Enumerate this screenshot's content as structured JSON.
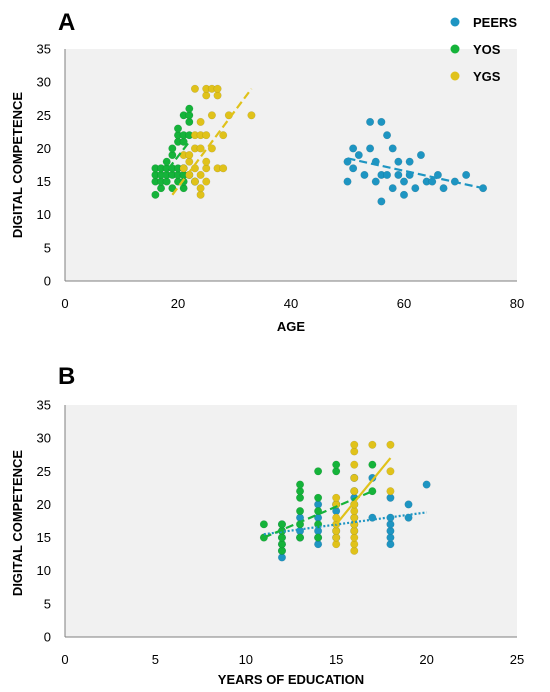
{
  "colors": {
    "PEERS": "#1e95c2",
    "YOS": "#15b33a",
    "YGS": "#e0c21a",
    "plot_bg": "#f1f1f1",
    "axis": "#7f7f7f"
  },
  "legend": [
    {
      "name": "PEERS",
      "color": "#1e95c2"
    },
    {
      "name": "YOS",
      "color": "#15b33a"
    },
    {
      "name": "YGS",
      "color": "#e0c21a"
    }
  ],
  "chart_data": [
    {
      "panel": "A",
      "type": "scatter",
      "xlabel": "AGE",
      "ylabel": "DIGITAL COMPETENCE",
      "xlim": [
        0,
        80
      ],
      "ylim": [
        0,
        35
      ],
      "xticks": [
        0,
        20,
        40,
        60,
        80
      ],
      "yticks": [
        0,
        5,
        10,
        15,
        20,
        25,
        30,
        35
      ],
      "grid": false,
      "legend_position": "top-right",
      "series": [
        {
          "name": "PEERS",
          "color": "#1e95c2",
          "trend": {
            "x": [
              50,
              74
            ],
            "y": [
              18.5,
              14
            ],
            "style": "dashed"
          },
          "points": [
            [
              50,
              15
            ],
            [
              50,
              18
            ],
            [
              51,
              20
            ],
            [
              51,
              17
            ],
            [
              52,
              19
            ],
            [
              53,
              16
            ],
            [
              54,
              24
            ],
            [
              54,
              20
            ],
            [
              55,
              18
            ],
            [
              55,
              15
            ],
            [
              56,
              12
            ],
            [
              56,
              16
            ],
            [
              56,
              24
            ],
            [
              57,
              22
            ],
            [
              57,
              16
            ],
            [
              58,
              14
            ],
            [
              58,
              20
            ],
            [
              59,
              18
            ],
            [
              59,
              16
            ],
            [
              60,
              15
            ],
            [
              60,
              13
            ],
            [
              61,
              16
            ],
            [
              61,
              18
            ],
            [
              62,
              14
            ],
            [
              63,
              19
            ],
            [
              64,
              15
            ],
            [
              65,
              15
            ],
            [
              66,
              16
            ],
            [
              67,
              14
            ],
            [
              69,
              15
            ],
            [
              71,
              16
            ],
            [
              74,
              14
            ]
          ]
        },
        {
          "name": "YOS",
          "color": "#15b33a",
          "trend": {
            "x": [
              17,
              22
            ],
            "y": [
              15.5,
              21
            ],
            "style": "dashed"
          },
          "points": [
            [
              16,
              13
            ],
            [
              16,
              15
            ],
            [
              16,
              16
            ],
            [
              16,
              17
            ],
            [
              17,
              14
            ],
            [
              17,
              15
            ],
            [
              17,
              16
            ],
            [
              17,
              17
            ],
            [
              18,
              15
            ],
            [
              18,
              16
            ],
            [
              18,
              17
            ],
            [
              18,
              18
            ],
            [
              19,
              14
            ],
            [
              19,
              16
            ],
            [
              19,
              17
            ],
            [
              19,
              19
            ],
            [
              19,
              20
            ],
            [
              20,
              15
            ],
            [
              20,
              16
            ],
            [
              20,
              17
            ],
            [
              20,
              21
            ],
            [
              20,
              22
            ],
            [
              20,
              23
            ],
            [
              21,
              14
            ],
            [
              21,
              15
            ],
            [
              21,
              16
            ],
            [
              21,
              17
            ],
            [
              21,
              21
            ],
            [
              21,
              22
            ],
            [
              21,
              25
            ],
            [
              22,
              16
            ],
            [
              22,
              22
            ],
            [
              22,
              24
            ],
            [
              22,
              25
            ],
            [
              22,
              26
            ],
            [
              23,
              15
            ]
          ]
        },
        {
          "name": "YGS",
          "color": "#e0c21a",
          "trend": {
            "x": [
              19,
              33
            ],
            "y": [
              13,
              29
            ],
            "style": "dashed"
          },
          "points": [
            [
              21,
              17
            ],
            [
              21,
              19
            ],
            [
              22,
              16
            ],
            [
              22,
              18
            ],
            [
              22,
              19
            ],
            [
              23,
              15
            ],
            [
              23,
              17
            ],
            [
              23,
              20
            ],
            [
              23,
              22
            ],
            [
              23,
              29
            ],
            [
              24,
              13
            ],
            [
              24,
              14
            ],
            [
              24,
              16
            ],
            [
              24,
              20
            ],
            [
              24,
              22
            ],
            [
              24,
              24
            ],
            [
              25,
              15
            ],
            [
              25,
              17
            ],
            [
              25,
              18
            ],
            [
              25,
              22
            ],
            [
              25,
              28
            ],
            [
              25,
              29
            ],
            [
              26,
              20
            ],
            [
              26,
              25
            ],
            [
              26,
              29
            ],
            [
              27,
              17
            ],
            [
              27,
              28
            ],
            [
              27,
              29
            ],
            [
              28,
              17
            ],
            [
              28,
              22
            ],
            [
              29,
              25
            ],
            [
              33,
              25
            ]
          ]
        }
      ]
    },
    {
      "panel": "B",
      "type": "scatter",
      "xlabel": "YEARS OF EDUCATION",
      "ylabel": "DIGITAL COMPETENCE",
      "xlim": [
        0,
        25
      ],
      "ylim": [
        0,
        35
      ],
      "xticks": [
        0,
        5,
        10,
        15,
        20,
        25
      ],
      "yticks": [
        0,
        5,
        10,
        15,
        20,
        25,
        30,
        35
      ],
      "grid": false,
      "series": [
        {
          "name": "PEERS",
          "color": "#1e95c2",
          "trend": {
            "x": [
              11,
              20
            ],
            "y": [
              15.5,
              18.8
            ],
            "style": "dotted"
          },
          "points": [
            [
              12,
              12
            ],
            [
              12,
              13
            ],
            [
              12,
              14
            ],
            [
              12,
              15
            ],
            [
              12,
              16
            ],
            [
              12,
              17
            ],
            [
              13,
              15
            ],
            [
              13,
              16
            ],
            [
              13,
              18
            ],
            [
              14,
              14
            ],
            [
              14,
              15
            ],
            [
              14,
              16
            ],
            [
              14,
              18
            ],
            [
              14,
              20
            ],
            [
              15,
              19
            ],
            [
              15,
              20
            ],
            [
              16,
              16
            ],
            [
              16,
              18
            ],
            [
              16,
              21
            ],
            [
              16,
              24
            ],
            [
              17,
              18
            ],
            [
              17,
              24
            ],
            [
              18,
              14
            ],
            [
              18,
              15
            ],
            [
              18,
              16
            ],
            [
              18,
              17
            ],
            [
              18,
              18
            ],
            [
              18,
              21
            ],
            [
              19,
              18
            ],
            [
              19,
              20
            ],
            [
              20,
              23
            ]
          ]
        },
        {
          "name": "YOS",
          "color": "#15b33a",
          "trend": {
            "x": [
              11,
              17
            ],
            "y": [
              15,
              22
            ],
            "style": "dashed"
          },
          "points": [
            [
              11,
              17
            ],
            [
              11,
              15
            ],
            [
              12,
              13
            ],
            [
              12,
              14
            ],
            [
              12,
              15
            ],
            [
              12,
              16
            ],
            [
              12,
              17
            ],
            [
              13,
              15
            ],
            [
              13,
              17
            ],
            [
              13,
              19
            ],
            [
              13,
              21
            ],
            [
              13,
              22
            ],
            [
              13,
              23
            ],
            [
              14,
              15
            ],
            [
              14,
              17
            ],
            [
              14,
              19
            ],
            [
              14,
              21
            ],
            [
              14,
              25
            ],
            [
              15,
              15
            ],
            [
              15,
              16
            ],
            [
              15,
              20
            ],
            [
              15,
              25
            ],
            [
              15,
              26
            ],
            [
              16,
              17
            ],
            [
              16,
              20
            ],
            [
              16,
              22
            ],
            [
              17,
              22
            ],
            [
              17,
              26
            ]
          ]
        },
        {
          "name": "YGS",
          "color": "#e0c21a",
          "trend": {
            "x": [
              15,
              18
            ],
            "y": [
              17,
              27
            ],
            "style": "solid"
          },
          "points": [
            [
              15,
              14
            ],
            [
              15,
              15
            ],
            [
              15,
              16
            ],
            [
              15,
              17
            ],
            [
              15,
              18
            ],
            [
              15,
              20
            ],
            [
              15,
              21
            ],
            [
              16,
              13
            ],
            [
              16,
              14
            ],
            [
              16,
              15
            ],
            [
              16,
              16
            ],
            [
              16,
              17
            ],
            [
              16,
              18
            ],
            [
              16,
              19
            ],
            [
              16,
              20
            ],
            [
              16,
              22
            ],
            [
              16,
              24
            ],
            [
              16,
              26
            ],
            [
              16,
              28
            ],
            [
              16,
              29
            ],
            [
              17,
              29
            ],
            [
              18,
              22
            ],
            [
              18,
              25
            ],
            [
              18,
              29
            ]
          ]
        }
      ]
    }
  ]
}
